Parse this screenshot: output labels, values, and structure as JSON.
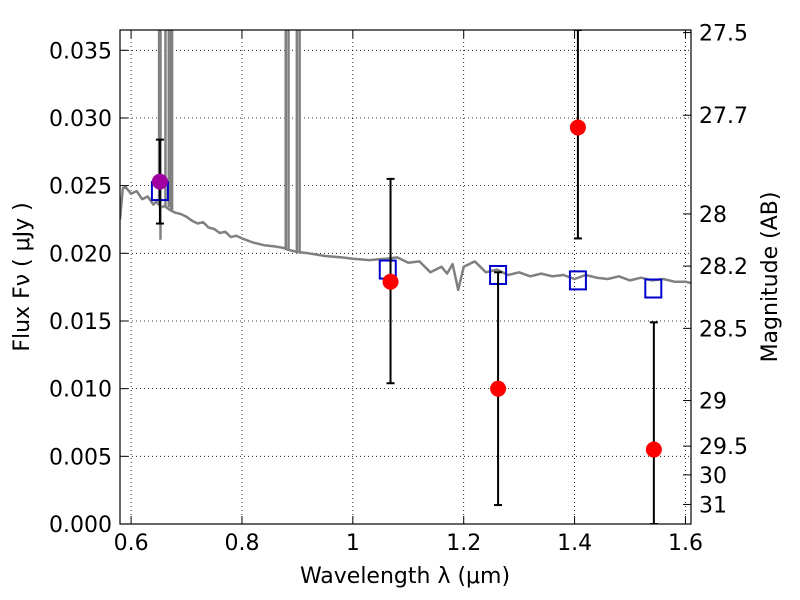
{
  "chart_data": {
    "type": "scatter",
    "xlabel": "Wavelength  λ (μm)",
    "ylabel": "Flux  Fν  ( μJy )",
    "y2label": "Magnitude (AB)",
    "xlim": [
      0.58,
      1.61
    ],
    "ylim": [
      0.0,
      0.0365
    ],
    "x_ticks": [
      0.6,
      0.8,
      1.0,
      1.2,
      1.4,
      1.6
    ],
    "x_tick_labels": [
      "0.6",
      "0.8",
      "1",
      "1.2",
      "1.4",
      "1.6"
    ],
    "y_ticks": [
      0.0,
      0.005,
      0.01,
      0.015,
      0.02,
      0.025,
      0.03,
      0.035
    ],
    "y_tick_labels": [
      "0.000",
      "0.005",
      "0.010",
      "0.015",
      "0.020",
      "0.025",
      "0.030",
      "0.035"
    ],
    "mag_ticks": [
      27.5,
      27.7,
      28,
      28.2,
      28.5,
      29,
      29.5,
      30,
      31
    ],
    "mag_tick_labels": [
      "27.5",
      "27.7",
      "28",
      "28.2",
      "28.5",
      "29",
      "29.5",
      "30",
      "31"
    ],
    "grid": true,
    "colors": {
      "model": "#808080",
      "observed": "#ff0000",
      "observed_optical": "#a000a0",
      "model_band": "#0000cc",
      "errorbar": "#000000"
    },
    "model_spectrum": {
      "x": [
        0.58,
        0.585,
        0.59,
        0.6,
        0.61,
        0.62,
        0.63,
        0.64,
        0.645,
        0.65,
        0.655,
        0.66,
        0.67,
        0.68,
        0.69,
        0.7,
        0.71,
        0.72,
        0.73,
        0.74,
        0.75,
        0.76,
        0.77,
        0.78,
        0.79,
        0.8,
        0.82,
        0.84,
        0.86,
        0.875,
        0.88,
        0.89,
        0.9,
        0.92,
        0.95,
        0.98,
        1.0,
        1.03,
        1.06,
        1.08,
        1.1,
        1.12,
        1.14,
        1.16,
        1.17,
        1.18,
        1.19,
        1.2,
        1.22,
        1.24,
        1.26,
        1.28,
        1.3,
        1.32,
        1.34,
        1.36,
        1.38,
        1.4,
        1.42,
        1.44,
        1.46,
        1.48,
        1.5,
        1.52,
        1.54,
        1.56,
        1.58,
        1.6,
        1.61
      ],
      "y": [
        0.0225,
        0.0248,
        0.0249,
        0.0244,
        0.0246,
        0.024,
        0.0242,
        0.0236,
        0.0238,
        0.0236,
        0.0234,
        0.0235,
        0.0232,
        0.023,
        0.0229,
        0.0227,
        0.0224,
        0.0222,
        0.0223,
        0.0219,
        0.0218,
        0.0215,
        0.0216,
        0.0212,
        0.0213,
        0.0211,
        0.0208,
        0.0206,
        0.0205,
        0.0204,
        0.0203,
        0.0202,
        0.0201,
        0.02,
        0.0198,
        0.0197,
        0.0196,
        0.0195,
        0.0196,
        0.0197,
        0.0193,
        0.0194,
        0.0186,
        0.019,
        0.0185,
        0.0192,
        0.0173,
        0.019,
        0.0194,
        0.0186,
        0.0188,
        0.0184,
        0.0186,
        0.0183,
        0.0185,
        0.0183,
        0.0184,
        0.0181,
        0.0184,
        0.0182,
        0.0181,
        0.0183,
        0.018,
        0.0182,
        0.018,
        0.0181,
        0.0179,
        0.0179,
        0.0178
      ]
    },
    "emission_spikes": [
      {
        "x": 0.6505,
        "base": 0.0236,
        "top": 0.0365
      },
      {
        "x": 0.653,
        "base": 0.021,
        "top": 0.0365
      },
      {
        "x": 0.662,
        "base": 0.0235,
        "top": 0.0365
      },
      {
        "x": 0.668,
        "base": 0.0234,
        "top": 0.0365
      },
      {
        "x": 0.672,
        "base": 0.0232,
        "top": 0.0365
      },
      {
        "x": 0.674,
        "base": 0.0232,
        "top": 0.0365
      },
      {
        "x": 0.879,
        "base": 0.0203,
        "top": 0.0365
      },
      {
        "x": 0.884,
        "base": 0.0203,
        "top": 0.0365
      },
      {
        "x": 0.899,
        "base": 0.0201,
        "top": 0.0365
      },
      {
        "x": 0.904,
        "base": 0.0201,
        "top": 0.0365
      }
    ],
    "model_band_fluxes": [
      {
        "x": 0.652,
        "y": 0.0246
      },
      {
        "x": 1.063,
        "y": 0.0188
      },
      {
        "x": 1.262,
        "y": 0.0184
      },
      {
        "x": 1.406,
        "y": 0.018
      },
      {
        "x": 1.542,
        "y": 0.0174
      }
    ],
    "observed_fluxes": [
      {
        "x": 0.652,
        "y": 0.0253,
        "err_low": 0.0222,
        "err_high": 0.0284,
        "color_key": "observed_optical"
      },
      {
        "x": 1.068,
        "y": 0.0179,
        "err_low": 0.0104,
        "err_high": 0.0255,
        "color_key": "observed"
      },
      {
        "x": 1.262,
        "y": 0.01,
        "err_low": 0.0014,
        "err_high": 0.0186,
        "color_key": "observed"
      },
      {
        "x": 1.406,
        "y": 0.0293,
        "err_low": 0.0211,
        "err_high": 0.0365,
        "color_key": "observed"
      },
      {
        "x": 1.543,
        "y": 0.0055,
        "err_low": 0.0,
        "err_high": 0.0149,
        "color_key": "observed"
      }
    ]
  }
}
